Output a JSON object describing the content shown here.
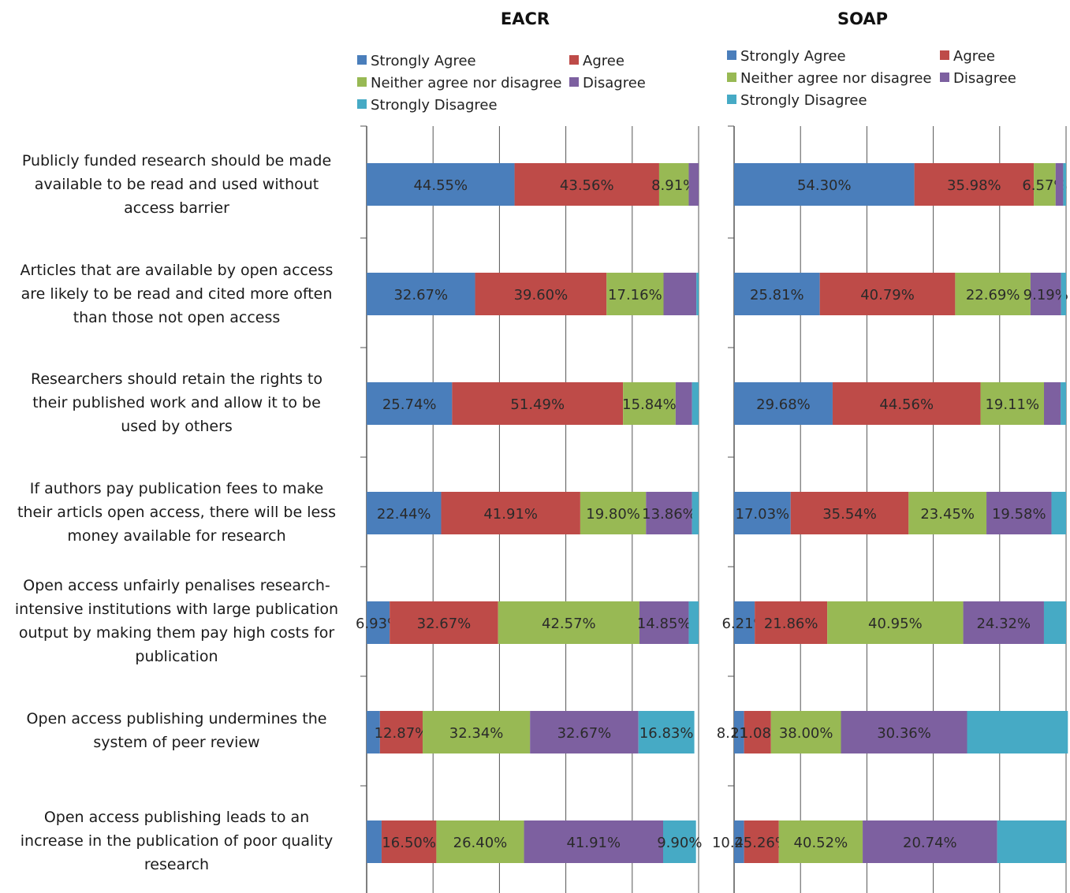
{
  "chart_data": [
    {
      "type": "bar",
      "stacked": true,
      "orientation": "horizontal",
      "title": "EACR",
      "x_range": [
        0,
        100
      ],
      "grid": "vertical lines",
      "legend_position": "top",
      "series": [
        {
          "name": "Strongly Agree",
          "values": [
            44.55,
            32.67,
            25.74,
            22.44,
            6.93,
            4.0,
            4.5
          ]
        },
        {
          "name": "Agree",
          "values": [
            43.56,
            39.6,
            51.49,
            41.91,
            32.67,
            12.87,
            16.5
          ]
        },
        {
          "name": "Neither agree nor disagree",
          "values": [
            8.91,
            17.16,
            15.84,
            19.8,
            42.57,
            32.34,
            26.4
          ]
        },
        {
          "name": "Disagree",
          "values": [
            2.98,
            9.9,
            4.95,
            13.86,
            14.85,
            32.67,
            41.91
          ]
        },
        {
          "name": "Strongly Disagree",
          "values": [
            0.0,
            0.67,
            1.98,
            1.99,
            2.98,
            16.83,
            9.9
          ]
        }
      ],
      "data_labels": [
        [
          "44.55%",
          "43.56%",
          "8.91%",
          "",
          ""
        ],
        [
          "32.67%",
          "39.60%",
          "17.16%",
          "",
          ""
        ],
        [
          "25.74%",
          "51.49%",
          "15.84%",
          "",
          ""
        ],
        [
          "22.44%",
          "41.91%",
          "19.80%",
          "13.86%",
          ""
        ],
        [
          "6.93%",
          "32.67%",
          "42.57%",
          "14.85%",
          ""
        ],
        [
          "",
          "12.87%",
          "32.34%",
          "32.67%",
          "16.83%"
        ],
        [
          "",
          "16.50%",
          "26.40%",
          "41.91%",
          "9.90%"
        ]
      ]
    },
    {
      "type": "bar",
      "stacked": true,
      "orientation": "horizontal",
      "title": "SOAP",
      "x_range": [
        0,
        100
      ],
      "grid": "vertical lines",
      "legend_position": "top",
      "series": [
        {
          "name": "Strongly Agree",
          "values": [
            54.3,
            25.81,
            29.68,
            17.03,
            6.21,
            3.0,
            3.0
          ]
        },
        {
          "name": "Agree",
          "values": [
            35.98,
            40.79,
            44.56,
            35.54,
            21.86,
            8.11,
            10.47
          ]
        },
        {
          "name": "Neither agree nor disagree",
          "values": [
            6.57,
            22.69,
            19.11,
            23.45,
            40.95,
            21.08,
            25.26
          ]
        },
        {
          "name": "Disagree",
          "values": [
            2.3,
            9.19,
            5.0,
            19.58,
            24.32,
            38.0,
            40.52
          ]
        },
        {
          "name": "Strongly Disagree",
          "values": [
            0.85,
            1.52,
            1.65,
            4.4,
            6.66,
            30.36,
            20.74
          ]
        }
      ],
      "data_labels": [
        [
          "54.30%",
          "35.98%",
          "6.57%",
          "",
          ""
        ],
        [
          "25.81%",
          "40.79%",
          "22.69%",
          "9.19%",
          ""
        ],
        [
          "29.68%",
          "44.56%",
          "19.11%",
          "",
          ""
        ],
        [
          "17.03%",
          "35.54%",
          "23.45%",
          "19.58%",
          ""
        ],
        [
          "6.21%",
          "21.86%",
          "40.95%",
          "24.32%",
          ""
        ],
        [
          "8.11%",
          "21.08%",
          "38.00%",
          "30.36%",
          ""
        ],
        [
          "10.47%",
          "25.26%",
          "40.52%",
          "20.74%",
          ""
        ]
      ]
    }
  ],
  "categories": [
    [
      "Publicly funded research should be made",
      "available to be read and used without",
      "access barrier"
    ],
    [
      "Articles that are available by open access",
      "are likely to be read and cited more often",
      "than those not open access"
    ],
    [
      "Researchers should retain the rights to",
      "their published work and allow it to be",
      "used by others"
    ],
    [
      "If authors pay publication fees to make",
      "their articls open access, there will be less",
      "money available for research"
    ],
    [
      "Open access unfairly penalises research-",
      "intensive institutions with large publication",
      "output by making them pay high costs for",
      "publication"
    ],
    [
      "Open access publishing undermines the",
      "system of peer review"
    ],
    [
      "Open access publishing leads to an",
      "increase in the publication of poor quality",
      "research"
    ]
  ],
  "colors": {
    "Strongly Agree": "#4a7ebb",
    "Agree": "#be4b48",
    "Neither agree nor disagree": "#98b954",
    "Disagree": "#7d60a0",
    "Strongly Disagree": "#46aac5",
    "label_text": "#2a2a2a",
    "grid": "#555555"
  }
}
